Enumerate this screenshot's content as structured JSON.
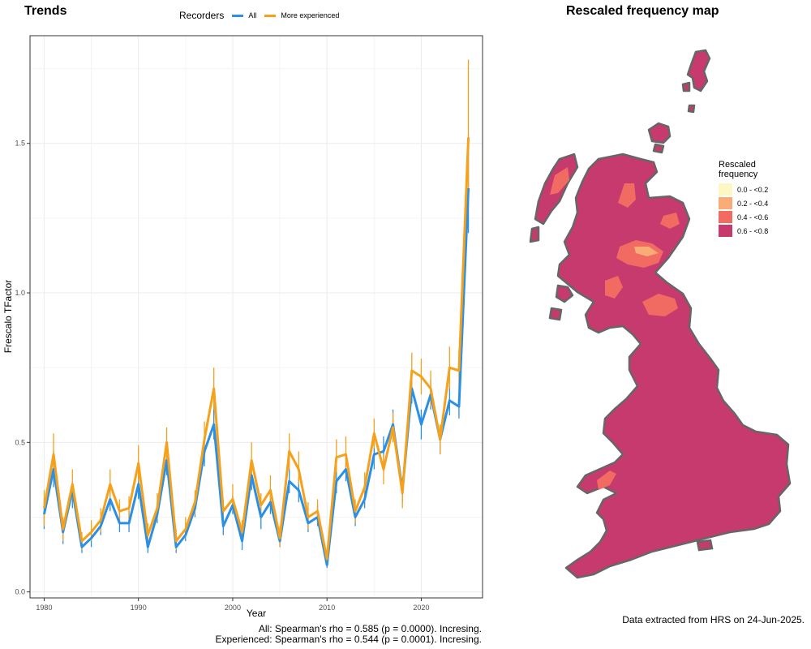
{
  "trends": {
    "title": "Trends",
    "legend_title": "Recorders",
    "series_labels": [
      "All",
      "More experienced"
    ]
  },
  "map": {
    "title": "Rescaled frequency map",
    "legend_title_1": "Rescaled",
    "legend_title_2": "frequency",
    "legend_items": [
      {
        "label": "0.0 - <0.2",
        "color": "#fdf8c3"
      },
      {
        "label": "0.2 - <0.4",
        "color": "#f9ac78"
      },
      {
        "label": "0.4 - <0.6",
        "color": "#f26b62"
      },
      {
        "label": "0.6 - <0.8",
        "color": "#c63a6e"
      }
    ],
    "outline_color": "#666666"
  },
  "notes": {
    "stat_all": "All: Spearman's rho = 0.585 (p = 0.0000). Incresing.",
    "stat_exp": "Experienced: Spearman's rho = 0.544 (p = 0.0001). Incresing.",
    "source": "Data extracted from HRS on 24-Jun-2025."
  },
  "chart_data": {
    "type": "line",
    "title": "Trends",
    "xlabel": "Year",
    "ylabel": "Frescalo TFactor",
    "xlim": [
      1978.5,
      2026.5
    ],
    "ylim": [
      -0.02,
      1.86
    ],
    "x_ticks": [
      1980,
      1990,
      2000,
      2010,
      2020
    ],
    "y_ticks": [
      0.0,
      0.5,
      1.0,
      1.5
    ],
    "y_tick_labels": [
      "0.0",
      "0.5",
      "1.0",
      "1.5"
    ],
    "grid": true,
    "legend_position": "top",
    "x": [
      1980,
      1981,
      1982,
      1983,
      1984,
      1985,
      1986,
      1987,
      1988,
      1989,
      1990,
      1991,
      1992,
      1993,
      1994,
      1995,
      1996,
      1997,
      1998,
      1999,
      2000,
      2001,
      2002,
      2003,
      2004,
      2005,
      2006,
      2007,
      2008,
      2009,
      2010,
      2011,
      2012,
      2013,
      2014,
      2015,
      2016,
      2017,
      2018,
      2019,
      2020,
      2021,
      2022,
      2023,
      2024,
      2025
    ],
    "series": [
      {
        "name": "All",
        "color": "#2b8fe6",
        "values": [
          0.26,
          0.41,
          0.2,
          0.34,
          0.15,
          0.18,
          0.22,
          0.31,
          0.23,
          0.23,
          0.36,
          0.15,
          0.26,
          0.44,
          0.15,
          0.19,
          0.28,
          0.47,
          0.56,
          0.22,
          0.29,
          0.17,
          0.39,
          0.25,
          0.3,
          0.17,
          0.37,
          0.34,
          0.23,
          0.25,
          0.09,
          0.37,
          0.41,
          0.25,
          0.31,
          0.46,
          0.47,
          0.56,
          0.34,
          0.68,
          0.56,
          0.66,
          0.51,
          0.64,
          0.62,
          1.35
        ],
        "err_low": [
          0.21,
          0.35,
          0.16,
          0.28,
          0.13,
          0.15,
          0.19,
          0.27,
          0.2,
          0.2,
          0.31,
          0.13,
          0.23,
          0.39,
          0.13,
          0.17,
          0.25,
          0.42,
          0.51,
          0.19,
          0.26,
          0.14,
          0.34,
          0.21,
          0.26,
          0.15,
          0.33,
          0.3,
          0.2,
          0.22,
          0.08,
          0.33,
          0.37,
          0.22,
          0.28,
          0.41,
          0.42,
          0.51,
          0.3,
          0.63,
          0.51,
          0.61,
          0.46,
          0.59,
          0.58,
          1.2
        ],
        "err_high": [
          0.31,
          0.47,
          0.24,
          0.37,
          0.18,
          0.21,
          0.25,
          0.35,
          0.27,
          0.27,
          0.41,
          0.18,
          0.3,
          0.49,
          0.18,
          0.22,
          0.32,
          0.52,
          0.62,
          0.26,
          0.32,
          0.2,
          0.43,
          0.28,
          0.34,
          0.2,
          0.41,
          0.38,
          0.26,
          0.29,
          0.11,
          0.41,
          0.45,
          0.28,
          0.34,
          0.51,
          0.52,
          0.61,
          0.38,
          0.73,
          0.61,
          0.71,
          0.55,
          0.69,
          0.66,
          1.5
        ]
      },
      {
        "name": "More experienced",
        "color": "#f5a11b",
        "values": [
          0.28,
          0.46,
          0.21,
          0.36,
          0.17,
          0.2,
          0.24,
          0.36,
          0.27,
          0.28,
          0.43,
          0.19,
          0.28,
          0.5,
          0.17,
          0.21,
          0.3,
          0.51,
          0.68,
          0.27,
          0.31,
          0.2,
          0.44,
          0.29,
          0.34,
          0.18,
          0.47,
          0.41,
          0.25,
          0.27,
          0.11,
          0.45,
          0.46,
          0.27,
          0.35,
          0.53,
          0.41,
          0.55,
          0.33,
          0.74,
          0.72,
          0.68,
          0.51,
          0.75,
          0.74,
          1.52
        ],
        "err_low": [
          0.22,
          0.39,
          0.17,
          0.31,
          0.14,
          0.17,
          0.2,
          0.31,
          0.23,
          0.24,
          0.37,
          0.16,
          0.24,
          0.44,
          0.14,
          0.18,
          0.26,
          0.46,
          0.61,
          0.23,
          0.27,
          0.17,
          0.39,
          0.25,
          0.29,
          0.15,
          0.41,
          0.36,
          0.21,
          0.23,
          0.09,
          0.4,
          0.41,
          0.23,
          0.3,
          0.48,
          0.36,
          0.5,
          0.28,
          0.67,
          0.66,
          0.62,
          0.46,
          0.68,
          0.67,
          1.27
        ],
        "err_high": [
          0.34,
          0.53,
          0.25,
          0.41,
          0.2,
          0.24,
          0.28,
          0.41,
          0.31,
          0.32,
          0.49,
          0.23,
          0.33,
          0.55,
          0.21,
          0.25,
          0.34,
          0.57,
          0.75,
          0.31,
          0.36,
          0.24,
          0.5,
          0.33,
          0.39,
          0.22,
          0.53,
          0.47,
          0.3,
          0.31,
          0.13,
          0.51,
          0.52,
          0.31,
          0.4,
          0.58,
          0.46,
          0.6,
          0.38,
          0.8,
          0.78,
          0.74,
          0.56,
          0.82,
          0.81,
          1.78
        ]
      }
    ]
  }
}
